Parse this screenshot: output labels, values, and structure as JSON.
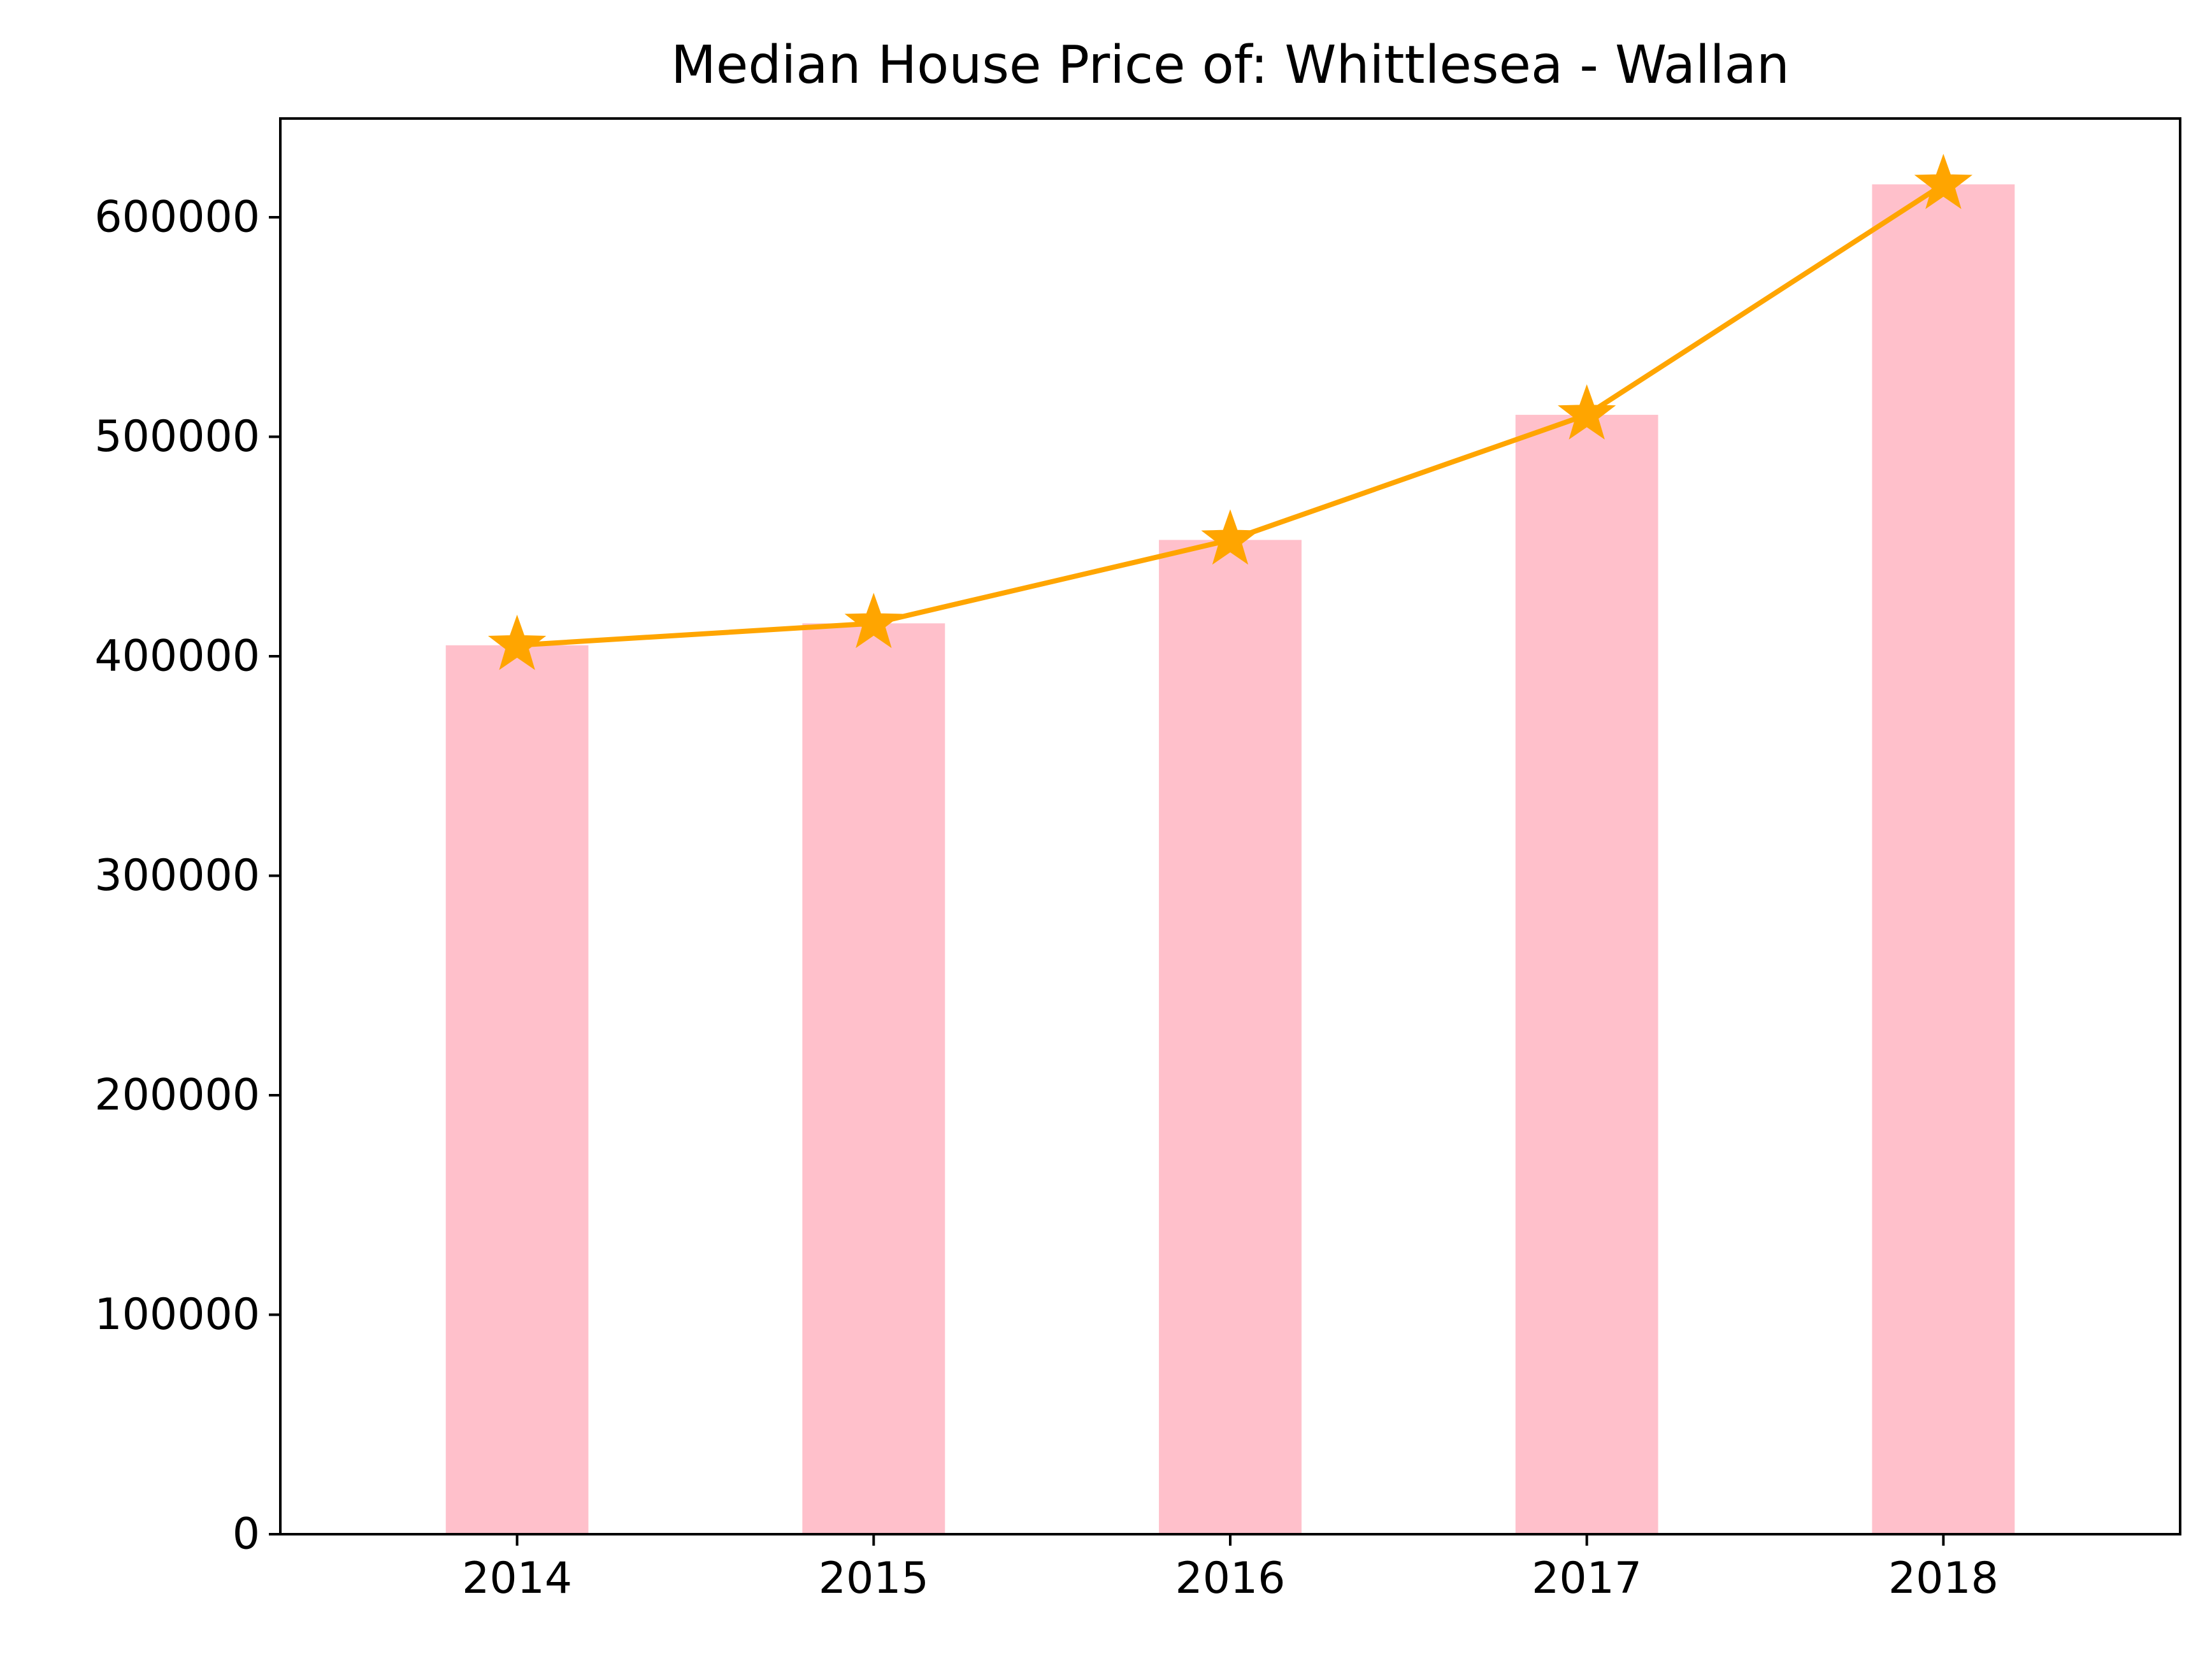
{
  "chart_data": {
    "type": "bar",
    "title": "Median House Price of: Whittlesea - Wallan",
    "xlabel": "",
    "ylabel": "",
    "categories": [
      "2014",
      "2015",
      "2016",
      "2017",
      "2018"
    ],
    "series": [
      {
        "type": "bar",
        "values": [
          405000,
          415000,
          453000,
          510000,
          615000
        ],
        "color": "#ffc0cb"
      },
      {
        "type": "line",
        "marker": "star",
        "values": [
          405000,
          415000,
          453000,
          510000,
          615000
        ],
        "color": "#ffa500"
      }
    ],
    "ylim": [
      0,
      645000
    ],
    "yticks": [
      0,
      100000,
      200000,
      300000,
      400000,
      500000,
      600000
    ],
    "ytick_labels": [
      "0",
      "100000",
      "200000",
      "300000",
      "400000",
      "500000",
      "600000"
    ],
    "grid": false,
    "legend": "none"
  }
}
